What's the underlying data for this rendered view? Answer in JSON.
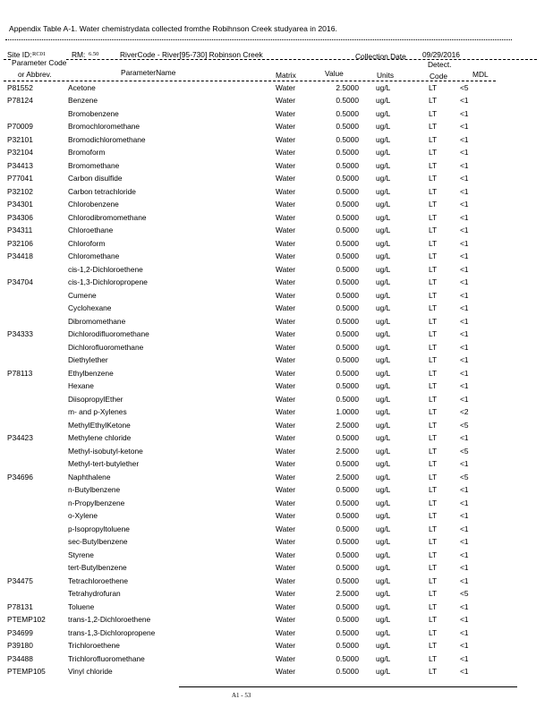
{
  "title": "Appendix Table A-1. Water chemistrydata collected fromthe Robihnson Creek studyarea in 2016.",
  "site": {
    "site_id_label": "Site ID:",
    "site_id": "RC01",
    "rm_label": "RM:",
    "rm": "6.50",
    "river_code": "RiverCode - River[95-730] Robinson Creek",
    "collection_date_label": "Collection Date",
    "collection_date": "09/29/2016"
  },
  "columns": {
    "code_1": "Parameter Code",
    "code_2": "or Abbrev.",
    "name": "ParameterName",
    "matrix": "Matrix",
    "value": "Value",
    "units": "Units",
    "detect_1": "Detect.",
    "detect_2": "Code",
    "mdl": "MDL"
  },
  "rows": [
    {
      "code": "P81552",
      "name": "Acetone",
      "matrix": "Water",
      "value": "2.5000",
      "units": "ug/L",
      "detect": "LT",
      "mdl": "<5"
    },
    {
      "code": "P78124",
      "name": "Benzene",
      "matrix": "Water",
      "value": "0.5000",
      "units": "ug/L",
      "detect": "LT",
      "mdl": "<1"
    },
    {
      "code": "",
      "name": "Bromobenzene",
      "matrix": "Water",
      "value": "0.5000",
      "units": "ug/L",
      "detect": "LT",
      "mdl": "<1"
    },
    {
      "code": "P70009",
      "name": "Bromochloromethane",
      "matrix": "Water",
      "value": "0.5000",
      "units": "ug/L",
      "detect": "LT",
      "mdl": "<1"
    },
    {
      "code": "P32101",
      "name": "Bromodichloromethane",
      "matrix": "Water",
      "value": "0.5000",
      "units": "ug/L",
      "detect": "LT",
      "mdl": "<1"
    },
    {
      "code": "P32104",
      "name": "Bromoform",
      "matrix": "Water",
      "value": "0.5000",
      "units": "ug/L",
      "detect": "LT",
      "mdl": "<1"
    },
    {
      "code": "P34413",
      "name": "Bromomethane",
      "matrix": "Water",
      "value": "0.5000",
      "units": "ug/L",
      "detect": "LT",
      "mdl": "<1"
    },
    {
      "code": "P77041",
      "name": "Carbon disulfide",
      "matrix": "Water",
      "value": "0.5000",
      "units": "ug/L",
      "detect": "LT",
      "mdl": "<1"
    },
    {
      "code": "P32102",
      "name": "Carbon tetrachloride",
      "matrix": "Water",
      "value": "0.5000",
      "units": "ug/L",
      "detect": "LT",
      "mdl": "<1"
    },
    {
      "code": "P34301",
      "name": "Chlorobenzene",
      "matrix": "Water",
      "value": "0.5000",
      "units": "ug/L",
      "detect": "LT",
      "mdl": "<1"
    },
    {
      "code": "P34306",
      "name": "Chlorodibromomethane",
      "matrix": "Water",
      "value": "0.5000",
      "units": "ug/L",
      "detect": "LT",
      "mdl": "<1"
    },
    {
      "code": "P34311",
      "name": "Chloroethane",
      "matrix": "Water",
      "value": "0.5000",
      "units": "ug/L",
      "detect": "LT",
      "mdl": "<1"
    },
    {
      "code": "P32106",
      "name": "Chloroform",
      "matrix": "Water",
      "value": "0.5000",
      "units": "ug/L",
      "detect": "LT",
      "mdl": "<1"
    },
    {
      "code": "P34418",
      "name": "Chloromethane",
      "matrix": "Water",
      "value": "0.5000",
      "units": "ug/L",
      "detect": "LT",
      "mdl": "<1"
    },
    {
      "code": "",
      "name": "cis-1,2-Dichloroethene",
      "matrix": "Water",
      "value": "0.5000",
      "units": "ug/L",
      "detect": "LT",
      "mdl": "<1"
    },
    {
      "code": "P34704",
      "name": "cis-1,3-Dichloropropene",
      "matrix": "Water",
      "value": "0.5000",
      "units": "ug/L",
      "detect": "LT",
      "mdl": "<1"
    },
    {
      "code": "",
      "name": "Cumene",
      "matrix": "Water",
      "value": "0.5000",
      "units": "ug/L",
      "detect": "LT",
      "mdl": "<1"
    },
    {
      "code": "",
      "name": "Cyclohexane",
      "matrix": "Water",
      "value": "0.5000",
      "units": "ug/L",
      "detect": "LT",
      "mdl": "<1"
    },
    {
      "code": "",
      "name": "Dibromomethane",
      "matrix": "Water",
      "value": "0.5000",
      "units": "ug/L",
      "detect": "LT",
      "mdl": "<1"
    },
    {
      "code": "P34333",
      "name": "Dichlorodifluoromethane",
      "matrix": "Water",
      "value": "0.5000",
      "units": "ug/L",
      "detect": "LT",
      "mdl": "<1"
    },
    {
      "code": "",
      "name": "Dichlorofluoromethane",
      "matrix": "Water",
      "value": "0.5000",
      "units": "ug/L",
      "detect": "LT",
      "mdl": "<1"
    },
    {
      "code": "",
      "name": "Diethylether",
      "matrix": "Water",
      "value": "0.5000",
      "units": "ug/L",
      "detect": "LT",
      "mdl": "<1"
    },
    {
      "code": "P78113",
      "name": "Ethylbenzene",
      "matrix": "Water",
      "value": "0.5000",
      "units": "ug/L",
      "detect": "LT",
      "mdl": "<1"
    },
    {
      "code": "",
      "name": "Hexane",
      "matrix": "Water",
      "value": "0.5000",
      "units": "ug/L",
      "detect": "LT",
      "mdl": "<1"
    },
    {
      "code": "",
      "name": "DiisopropylEther",
      "matrix": "Water",
      "value": "0.5000",
      "units": "ug/L",
      "detect": "LT",
      "mdl": "<1"
    },
    {
      "code": "",
      "name": "m- and p-Xylenes",
      "matrix": "Water",
      "value": "1.0000",
      "units": "ug/L",
      "detect": "LT",
      "mdl": "<2"
    },
    {
      "code": "",
      "name": "MethylEthylKetone",
      "matrix": "Water",
      "value": "2.5000",
      "units": "ug/L",
      "detect": "LT",
      "mdl": "<5"
    },
    {
      "code": "P34423",
      "name": "Methylene chloride",
      "matrix": "Water",
      "value": "0.5000",
      "units": "ug/L",
      "detect": "LT",
      "mdl": "<1"
    },
    {
      "code": "",
      "name": "Methyl-isobutyl-ketone",
      "matrix": "Water",
      "value": "2.5000",
      "units": "ug/L",
      "detect": "LT",
      "mdl": "<5"
    },
    {
      "code": "",
      "name": "Methyl-tert-butylether",
      "matrix": "Water",
      "value": "0.5000",
      "units": "ug/L",
      "detect": "LT",
      "mdl": "<1"
    },
    {
      "code": "P34696",
      "name": "Naphthalene",
      "matrix": "Water",
      "value": "2.5000",
      "units": "ug/L",
      "detect": "LT",
      "mdl": "<5"
    },
    {
      "code": "",
      "name": "n-Butylbenzene",
      "matrix": "Water",
      "value": "0.5000",
      "units": "ug/L",
      "detect": "LT",
      "mdl": "<1"
    },
    {
      "code": "",
      "name": "n-Propylbenzene",
      "matrix": "Water",
      "value": "0.5000",
      "units": "ug/L",
      "detect": "LT",
      "mdl": "<1"
    },
    {
      "code": "",
      "name": "o-Xylene",
      "matrix": "Water",
      "value": "0.5000",
      "units": "ug/L",
      "detect": "LT",
      "mdl": "<1"
    },
    {
      "code": "",
      "name": "p-Isopropyltoluene",
      "matrix": "Water",
      "value": "0.5000",
      "units": "ug/L",
      "detect": "LT",
      "mdl": "<1"
    },
    {
      "code": "",
      "name": "sec-Butylbenzene",
      "matrix": "Water",
      "value": "0.5000",
      "units": "ug/L",
      "detect": "LT",
      "mdl": "<1"
    },
    {
      "code": "",
      "name": "Styrene",
      "matrix": "Water",
      "value": "0.5000",
      "units": "ug/L",
      "detect": "LT",
      "mdl": "<1"
    },
    {
      "code": "",
      "name": "tert-Butylbenzene",
      "matrix": "Water",
      "value": "0.5000",
      "units": "ug/L",
      "detect": "LT",
      "mdl": "<1"
    },
    {
      "code": "P34475",
      "name": "Tetrachloroethene",
      "matrix": "Water",
      "value": "0.5000",
      "units": "ug/L",
      "detect": "LT",
      "mdl": "<1"
    },
    {
      "code": "",
      "name": "Tetrahydrofuran",
      "matrix": "Water",
      "value": "2.5000",
      "units": "ug/L",
      "detect": "LT",
      "mdl": "<5"
    },
    {
      "code": "P78131",
      "name": "Toluene",
      "matrix": "Water",
      "value": "0.5000",
      "units": "ug/L",
      "detect": "LT",
      "mdl": "<1"
    },
    {
      "code": "PTEMP102",
      "name": "trans-1,2-Dichloroethene",
      "matrix": "Water",
      "value": "0.5000",
      "units": "ug/L",
      "detect": "LT",
      "mdl": "<1"
    },
    {
      "code": "P34699",
      "name": "trans-1,3-Dichloropropene",
      "matrix": "Water",
      "value": "0.5000",
      "units": "ug/L",
      "detect": "LT",
      "mdl": "<1"
    },
    {
      "code": "P39180",
      "name": "Trichloroethene",
      "matrix": "Water",
      "value": "0.5000",
      "units": "ug/L",
      "detect": "LT",
      "mdl": "<1"
    },
    {
      "code": "P34488",
      "name": "Trichlorofluoromethane",
      "matrix": "Water",
      "value": "0.5000",
      "units": "ug/L",
      "detect": "LT",
      "mdl": "<1"
    },
    {
      "code": "PTEMP105",
      "name": "Vinyl chloride",
      "matrix": "Water",
      "value": "0.5000",
      "units": "ug/L",
      "detect": "LT",
      "mdl": "<1"
    }
  ],
  "footer": {
    "page": "A1 - 53"
  }
}
